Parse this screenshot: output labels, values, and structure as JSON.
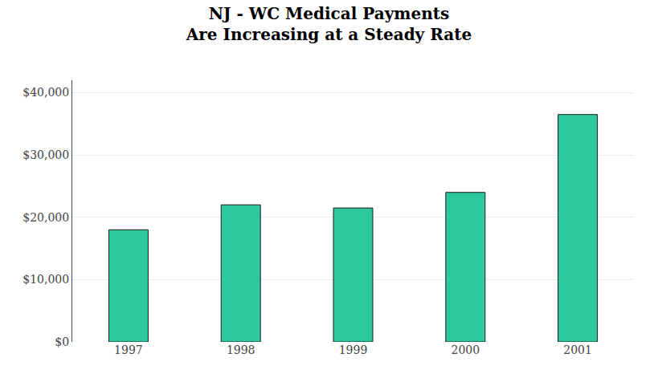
{
  "chart_data": {
    "type": "bar",
    "title": "NJ - WC Medical Payments",
    "subtitle": "Are Increasing at a Steady Rate",
    "categories": [
      "1997",
      "1998",
      "1999",
      "2000",
      "2001"
    ],
    "values": [
      18000,
      22000,
      21500,
      24000,
      36500
    ],
    "color": "#2DC8A0",
    "ylim": [
      0,
      42000
    ],
    "yticks": [
      {
        "value": 0,
        "label": "$0"
      },
      {
        "value": 10000,
        "label": "$10,000"
      },
      {
        "value": 20000,
        "label": "$20,000"
      },
      {
        "value": 30000,
        "label": "$30,000"
      },
      {
        "value": 40000,
        "label": "$40,000"
      }
    ],
    "grid": true
  }
}
